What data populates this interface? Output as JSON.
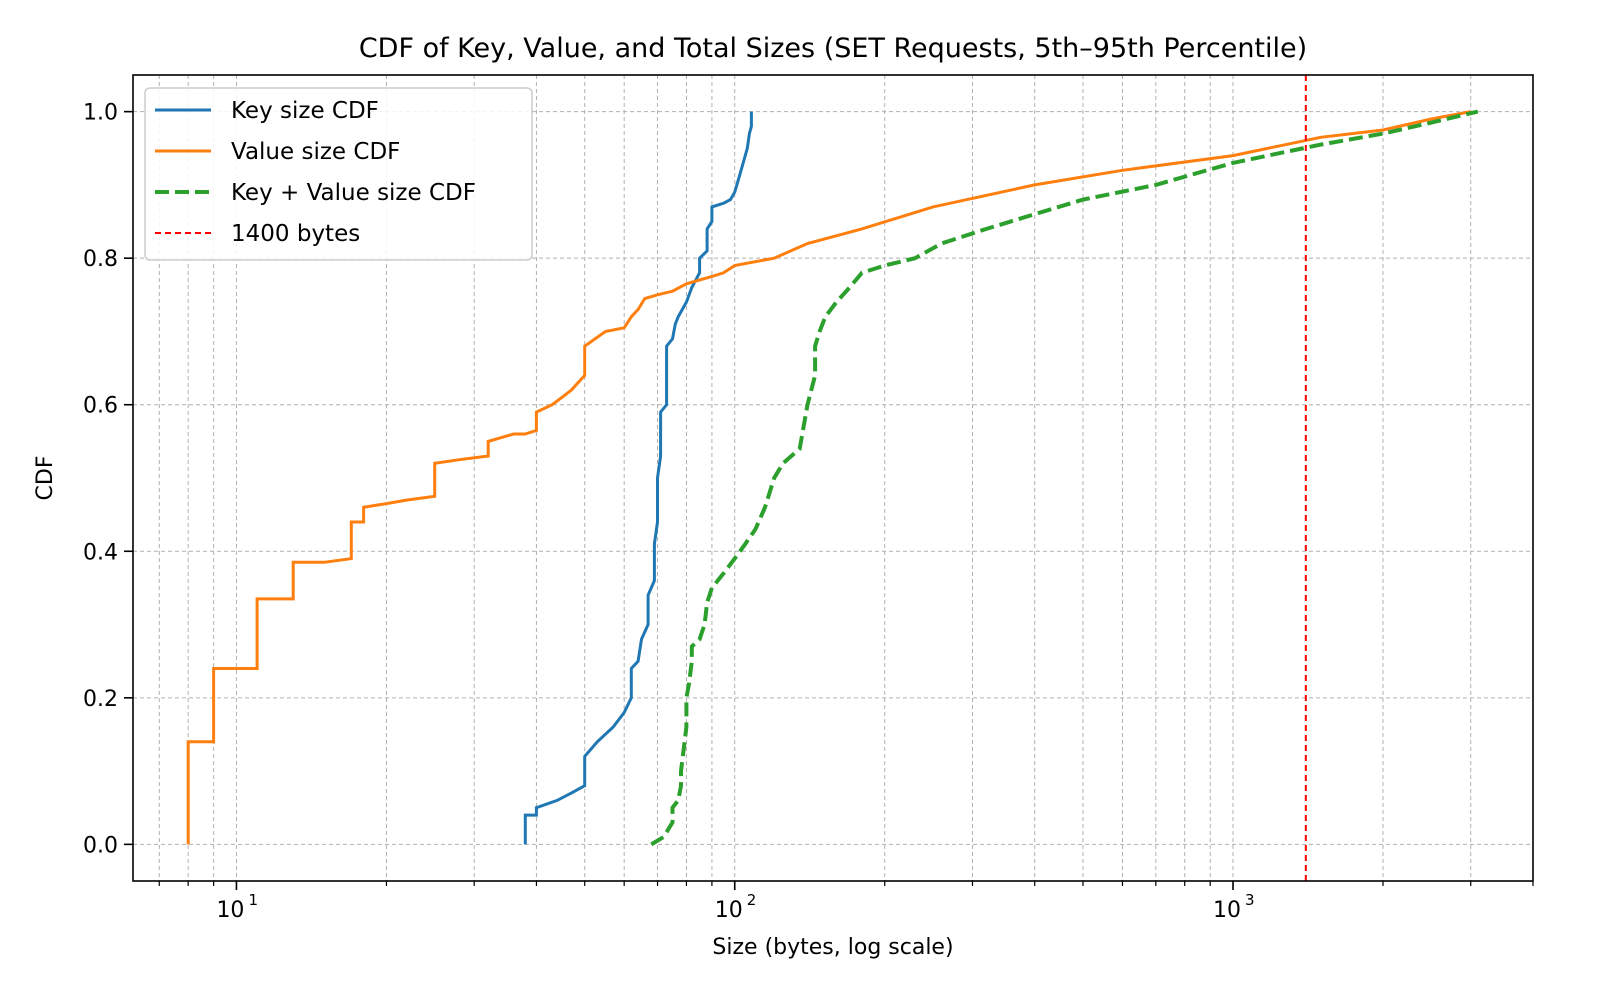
{
  "chart_data": {
    "type": "line",
    "title": "CDF of Key, Value, and Total Sizes (SET Requests, 5th–95th Percentile)",
    "xlabel": "Size (bytes, log scale)",
    "ylabel": "CDF",
    "xscale": "log",
    "xlim": [
      6.2,
      4000
    ],
    "ylim": [
      -0.05,
      1.05
    ],
    "xticks": [
      {
        "value": 10,
        "base": "10",
        "exp": "1"
      },
      {
        "value": 100,
        "base": "10",
        "exp": "2"
      },
      {
        "value": 1000,
        "base": "10",
        "exp": "3"
      }
    ],
    "yticks": [
      {
        "value": 0.0,
        "label": "0.0"
      },
      {
        "value": 0.2,
        "label": "0.2"
      },
      {
        "value": 0.4,
        "label": "0.4"
      },
      {
        "value": 0.6,
        "label": "0.6"
      },
      {
        "value": 0.8,
        "label": "0.8"
      },
      {
        "value": 1.0,
        "label": "1.0"
      }
    ],
    "grid": true,
    "legend_position": "upper-left",
    "series": [
      {
        "name": "Key size CDF",
        "color": "#1f77b4",
        "style": "solid",
        "points": [
          [
            38,
            0.0
          ],
          [
            38,
            0.04
          ],
          [
            40,
            0.04
          ],
          [
            40,
            0.05
          ],
          [
            44,
            0.06
          ],
          [
            47,
            0.07
          ],
          [
            50,
            0.08
          ],
          [
            50,
            0.12
          ],
          [
            53,
            0.14
          ],
          [
            57,
            0.16
          ],
          [
            60,
            0.18
          ],
          [
            62,
            0.2
          ],
          [
            62,
            0.24
          ],
          [
            64,
            0.25
          ],
          [
            65,
            0.28
          ],
          [
            67,
            0.3
          ],
          [
            67,
            0.34
          ],
          [
            69,
            0.36
          ],
          [
            69,
            0.41
          ],
          [
            70,
            0.44
          ],
          [
            70,
            0.5
          ],
          [
            71,
            0.53
          ],
          [
            71,
            0.59
          ],
          [
            73,
            0.6
          ],
          [
            73,
            0.68
          ],
          [
            75,
            0.69
          ],
          [
            76,
            0.71
          ],
          [
            77,
            0.72
          ],
          [
            80,
            0.74
          ],
          [
            82,
            0.76
          ],
          [
            85,
            0.78
          ],
          [
            85,
            0.8
          ],
          [
            88,
            0.81
          ],
          [
            88,
            0.84
          ],
          [
            90,
            0.85
          ],
          [
            90,
            0.87
          ],
          [
            95,
            0.875
          ],
          [
            98,
            0.88
          ],
          [
            100,
            0.89
          ],
          [
            102,
            0.91
          ],
          [
            104,
            0.93
          ],
          [
            106,
            0.95
          ],
          [
            107,
            0.97
          ],
          [
            108,
            0.98
          ],
          [
            108,
            1.0
          ]
        ]
      },
      {
        "name": "Value size CDF",
        "color": "#ff7f0e",
        "style": "solid",
        "points": [
          [
            8,
            0.0
          ],
          [
            8,
            0.14
          ],
          [
            9,
            0.14
          ],
          [
            9,
            0.24
          ],
          [
            11,
            0.24
          ],
          [
            11,
            0.335
          ],
          [
            13,
            0.335
          ],
          [
            13,
            0.385
          ],
          [
            15,
            0.385
          ],
          [
            17,
            0.39
          ],
          [
            17,
            0.44
          ],
          [
            18,
            0.44
          ],
          [
            18,
            0.46
          ],
          [
            20,
            0.465
          ],
          [
            22,
            0.47
          ],
          [
            25,
            0.475
          ],
          [
            25,
            0.52
          ],
          [
            28,
            0.525
          ],
          [
            32,
            0.53
          ],
          [
            32,
            0.55
          ],
          [
            36,
            0.56
          ],
          [
            38,
            0.56
          ],
          [
            40,
            0.565
          ],
          [
            40,
            0.59
          ],
          [
            43,
            0.6
          ],
          [
            45,
            0.61
          ],
          [
            47,
            0.62
          ],
          [
            50,
            0.64
          ],
          [
            50,
            0.68
          ],
          [
            55,
            0.7
          ],
          [
            60,
            0.705
          ],
          [
            62,
            0.72
          ],
          [
            64,
            0.73
          ],
          [
            66,
            0.745
          ],
          [
            70,
            0.75
          ],
          [
            75,
            0.755
          ],
          [
            80,
            0.765
          ],
          [
            90,
            0.775
          ],
          [
            95,
            0.78
          ],
          [
            100,
            0.79
          ],
          [
            120,
            0.8
          ],
          [
            140,
            0.82
          ],
          [
            180,
            0.84
          ],
          [
            250,
            0.87
          ],
          [
            400,
            0.9
          ],
          [
            600,
            0.92
          ],
          [
            1000,
            0.94
          ],
          [
            1500,
            0.965
          ],
          [
            2000,
            0.975
          ],
          [
            2500,
            0.99
          ],
          [
            3000,
            1.0
          ]
        ]
      },
      {
        "name": "Key + Value size CDF",
        "color": "#2ca02c",
        "style": "dashed",
        "points": [
          [
            68,
            0.0
          ],
          [
            72,
            0.01
          ],
          [
            75,
            0.03
          ],
          [
            75,
            0.05
          ],
          [
            77,
            0.06
          ],
          [
            78,
            0.08
          ],
          [
            78,
            0.1
          ],
          [
            79,
            0.13
          ],
          [
            80,
            0.16
          ],
          [
            80,
            0.2
          ],
          [
            81,
            0.22
          ],
          [
            82,
            0.25
          ],
          [
            82,
            0.27
          ],
          [
            85,
            0.28
          ],
          [
            87,
            0.3
          ],
          [
            88,
            0.33
          ],
          [
            90,
            0.35
          ],
          [
            95,
            0.37
          ],
          [
            100,
            0.39
          ],
          [
            105,
            0.41
          ],
          [
            110,
            0.43
          ],
          [
            115,
            0.46
          ],
          [
            120,
            0.5
          ],
          [
            125,
            0.52
          ],
          [
            135,
            0.54
          ],
          [
            140,
            0.6
          ],
          [
            145,
            0.64
          ],
          [
            145,
            0.68
          ],
          [
            148,
            0.7
          ],
          [
            152,
            0.72
          ],
          [
            160,
            0.74
          ],
          [
            170,
            0.76
          ],
          [
            180,
            0.78
          ],
          [
            200,
            0.79
          ],
          [
            230,
            0.8
          ],
          [
            260,
            0.82
          ],
          [
            320,
            0.84
          ],
          [
            400,
            0.86
          ],
          [
            500,
            0.88
          ],
          [
            700,
            0.9
          ],
          [
            1000,
            0.93
          ],
          [
            1500,
            0.955
          ],
          [
            2000,
            0.97
          ],
          [
            2500,
            0.985
          ],
          [
            3100,
            1.0
          ]
        ]
      },
      {
        "name": "1400 bytes",
        "color": "#ff0000",
        "style": "dotted-vertical",
        "x": 1400
      }
    ]
  }
}
